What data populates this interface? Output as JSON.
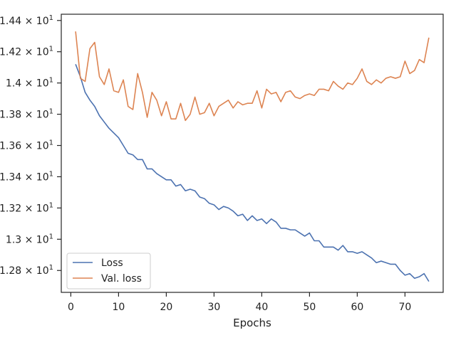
{
  "chart_data": {
    "type": "line",
    "xlabel": "Epochs",
    "ylabel": "",
    "xlim": [
      -2,
      78
    ],
    "ylim": [
      12.66,
      14.44
    ],
    "grid": false,
    "legend_position": "lower-left",
    "x_ticks": [
      0,
      10,
      20,
      30,
      40,
      50,
      60,
      70
    ],
    "x_tick_labels": [
      "0",
      "10",
      "20",
      "30",
      "40",
      "50",
      "60",
      "70"
    ],
    "y_ticks": [
      12.8,
      13.0,
      13.2,
      13.4,
      13.6,
      13.8,
      14.0,
      14.2,
      14.4
    ],
    "y_tick_labels": [
      {
        "base": "1.28",
        "exp": "1"
      },
      {
        "base": "1.3",
        "exp": "1"
      },
      {
        "base": "1.32",
        "exp": "1"
      },
      {
        "base": "1.34",
        "exp": "1"
      },
      {
        "base": "1.36",
        "exp": "1"
      },
      {
        "base": "1.38",
        "exp": "1"
      },
      {
        "base": "1.4",
        "exp": "1"
      },
      {
        "base": "1.42",
        "exp": "1"
      },
      {
        "base": "1.44",
        "exp": "1"
      }
    ],
    "x": [
      1,
      2,
      3,
      4,
      5,
      6,
      7,
      8,
      9,
      10,
      11,
      12,
      13,
      14,
      15,
      16,
      17,
      18,
      19,
      20,
      21,
      22,
      23,
      24,
      25,
      26,
      27,
      28,
      29,
      30,
      31,
      32,
      33,
      34,
      35,
      36,
      37,
      38,
      39,
      40,
      41,
      42,
      43,
      44,
      45,
      46,
      47,
      48,
      49,
      50,
      51,
      52,
      53,
      54,
      55,
      56,
      57,
      58,
      59,
      60,
      61,
      62,
      63,
      64,
      65,
      66,
      67,
      68,
      69,
      70,
      71,
      72,
      73,
      74,
      75
    ],
    "series": [
      {
        "name": "Loss",
        "color": "#4c72b0",
        "values": [
          14.12,
          14.04,
          13.94,
          13.89,
          13.85,
          13.79,
          13.75,
          13.71,
          13.68,
          13.65,
          13.6,
          13.55,
          13.54,
          13.51,
          13.51,
          13.45,
          13.45,
          13.42,
          13.4,
          13.38,
          13.38,
          13.34,
          13.35,
          13.31,
          13.32,
          13.31,
          13.27,
          13.26,
          13.23,
          13.22,
          13.19,
          13.21,
          13.2,
          13.18,
          13.15,
          13.16,
          13.12,
          13.15,
          13.12,
          13.13,
          13.1,
          13.13,
          13.11,
          13.07,
          13.07,
          13.06,
          13.06,
          13.04,
          13.02,
          13.04,
          12.99,
          12.99,
          12.95,
          12.95,
          12.95,
          12.93,
          12.96,
          12.92,
          12.92,
          12.91,
          12.92,
          12.9,
          12.88,
          12.85,
          12.86,
          12.85,
          12.84,
          12.84,
          12.8,
          12.77,
          12.78,
          12.75,
          12.76,
          12.78,
          12.73
        ]
      },
      {
        "name": "Val. loss",
        "color": "#dd8452",
        "values": [
          14.33,
          14.03,
          14.01,
          14.22,
          14.26,
          14.04,
          13.99,
          14.09,
          13.95,
          13.94,
          14.02,
          13.85,
          13.83,
          14.06,
          13.94,
          13.78,
          13.94,
          13.89,
          13.79,
          13.88,
          13.77,
          13.77,
          13.87,
          13.76,
          13.8,
          13.91,
          13.8,
          13.81,
          13.87,
          13.79,
          13.85,
          13.87,
          13.89,
          13.84,
          13.88,
          13.86,
          13.87,
          13.87,
          13.95,
          13.84,
          13.96,
          13.93,
          13.94,
          13.88,
          13.94,
          13.95,
          13.91,
          13.9,
          13.92,
          13.93,
          13.92,
          13.96,
          13.96,
          13.95,
          14.01,
          13.98,
          13.96,
          14.0,
          13.99,
          14.03,
          14.09,
          14.01,
          13.99,
          14.02,
          14.0,
          14.03,
          14.04,
          14.03,
          14.04,
          14.14,
          14.06,
          14.08,
          14.15,
          14.13,
          14.29
        ]
      }
    ]
  }
}
